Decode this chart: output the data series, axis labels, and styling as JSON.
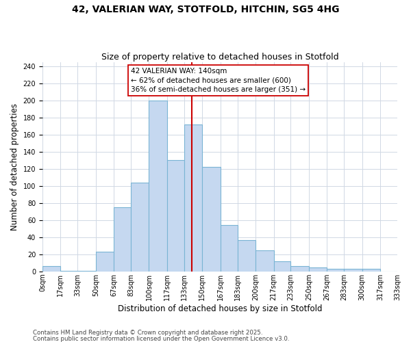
{
  "title": "42, VALERIAN WAY, STOTFOLD, HITCHIN, SG5 4HG",
  "subtitle": "Size of property relative to detached houses in Stotfold",
  "xlabel": "Distribution of detached houses by size in Stotfold",
  "ylabel": "Number of detached properties",
  "footnote1": "Contains HM Land Registry data © Crown copyright and database right 2025.",
  "footnote2": "Contains public sector information licensed under the Open Government Licence v3.0.",
  "bin_edges": [
    0,
    17,
    33,
    50,
    67,
    83,
    100,
    117,
    133,
    150,
    167,
    183,
    200,
    217,
    233,
    250,
    267,
    283,
    300,
    317,
    333
  ],
  "bin_labels": [
    "0sqm",
    "17sqm",
    "33sqm",
    "50sqm",
    "67sqm",
    "83sqm",
    "100sqm",
    "117sqm",
    "133sqm",
    "150sqm",
    "167sqm",
    "183sqm",
    "200sqm",
    "217sqm",
    "233sqm",
    "250sqm",
    "267sqm",
    "283sqm",
    "300sqm",
    "317sqm",
    "333sqm"
  ],
  "counts": [
    6,
    1,
    1,
    23,
    75,
    104,
    200,
    130,
    172,
    122,
    54,
    37,
    25,
    12,
    6,
    5,
    3,
    3,
    3,
    0
  ],
  "bar_color": "#c5d8f0",
  "bar_edgecolor": "#7ab4d4",
  "property_line_x": 140,
  "property_line_color": "#cc0000",
  "annotation_line1": "42 VALERIAN WAY: 140sqm",
  "annotation_line2": "← 62% of detached houses are smaller (600)",
  "annotation_line3": "36% of semi-detached houses are larger (351) →",
  "annotation_box_color": "#ffffff",
  "annotation_box_edgecolor": "#cc0000",
  "ylim": [
    0,
    245
  ],
  "yticks": [
    0,
    20,
    40,
    60,
    80,
    100,
    120,
    140,
    160,
    180,
    200,
    220,
    240
  ],
  "background_color": "#ffffff",
  "grid_color": "#d0d8e4",
  "title_fontsize": 10,
  "subtitle_fontsize": 9,
  "axis_label_fontsize": 8.5,
  "tick_fontsize": 7,
  "annot_fontsize": 7.5
}
